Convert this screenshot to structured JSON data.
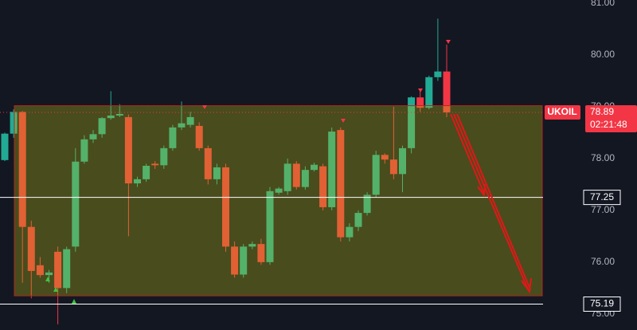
{
  "chart_data": {
    "type": "candlestick",
    "symbol": "UKOIL",
    "last_price": 78.89,
    "countdown": "02:21:48",
    "up_color": "#22ab94",
    "down_color": "#f23645",
    "ylim": [
      74.69,
      81.06
    ],
    "yticks": [
      {
        "value": 75,
        "label": "75.00"
      },
      {
        "value": 76,
        "label": "76.00"
      },
      {
        "value": 77,
        "label": "77.00"
      },
      {
        "value": 78,
        "label": "78.00"
      },
      {
        "value": 79,
        "label": "79.00"
      },
      {
        "value": 80,
        "label": "80.00"
      },
      {
        "value": 81,
        "label": "81.00"
      }
    ],
    "zone": {
      "low": 75.35,
      "high": 79.02
    },
    "levels": [
      77.25,
      75.19
    ],
    "open": [
      77.97,
      78.48,
      78.9,
      76.68,
      75.94,
      75.75,
      76.2,
      75.5,
      76.3,
      77.94,
      78.37,
      78.47,
      78.78,
      78.83,
      78.8,
      77.52,
      77.6,
      77.9,
      77.87,
      78.2,
      78.6,
      78.65,
      78.63,
      78.2,
      77.6,
      77.83,
      76.3,
      75.76,
      76.3,
      76.35,
      76.0,
      77.34,
      77.37,
      77.9,
      77.45,
      77.78,
      77.85,
      77.06,
      78.55,
      76.48,
      76.68,
      76.95,
      77.3,
      78.07,
      77.98,
      77.7,
      78.2,
      79.18,
      78.98,
      79.57,
      79.68
    ],
    "high": [
      78.5,
      78.95,
      78.92,
      76.8,
      76.1,
      75.85,
      76.3,
      76.3,
      78.2,
      78.45,
      78.55,
      78.8,
      79.3,
      79.05,
      78.85,
      77.65,
      77.9,
      77.95,
      78.25,
      78.65,
      79.1,
      78.9,
      78.7,
      78.25,
      77.9,
      77.9,
      76.4,
      76.35,
      76.4,
      76.45,
      77.45,
      77.45,
      78.0,
      77.95,
      77.85,
      77.92,
      77.9,
      78.6,
      78.6,
      76.75,
      77.0,
      77.35,
      78.15,
      78.1,
      79.0,
      78.25,
      79.2,
      79.3,
      79.6,
      80.7,
      80.2
    ],
    "low": [
      77.95,
      78.4,
      75.6,
      75.3,
      75.7,
      75.6,
      74.8,
      75.4,
      76.2,
      77.9,
      78.3,
      78.4,
      78.75,
      78.8,
      76.5,
      77.45,
      77.55,
      77.8,
      77.8,
      78.15,
      78.55,
      78.6,
      78.15,
      77.5,
      77.5,
      76.2,
      75.7,
      75.7,
      76.25,
      75.95,
      75.95,
      77.3,
      77.3,
      77.4,
      77.4,
      77.75,
      77.0,
      77.0,
      76.4,
      76.4,
      76.6,
      76.9,
      77.25,
      77.9,
      77.6,
      77.35,
      78.1,
      78.9,
      78.95,
      79.5,
      78.8
    ],
    "close": [
      78.48,
      78.9,
      76.68,
      75.83,
      75.75,
      75.8,
      75.5,
      76.25,
      77.94,
      78.37,
      78.47,
      78.78,
      78.83,
      78.86,
      77.52,
      77.6,
      77.86,
      77.87,
      78.2,
      78.6,
      78.68,
      78.8,
      78.2,
      77.6,
      77.83,
      76.3,
      75.76,
      76.3,
      76.35,
      76.0,
      77.37,
      77.42,
      77.9,
      77.45,
      77.78,
      77.88,
      77.06,
      78.52,
      76.48,
      76.68,
      76.95,
      77.3,
      78.07,
      77.98,
      77.7,
      78.2,
      79.18,
      78.98,
      79.57,
      79.68,
      78.89
    ]
  }
}
